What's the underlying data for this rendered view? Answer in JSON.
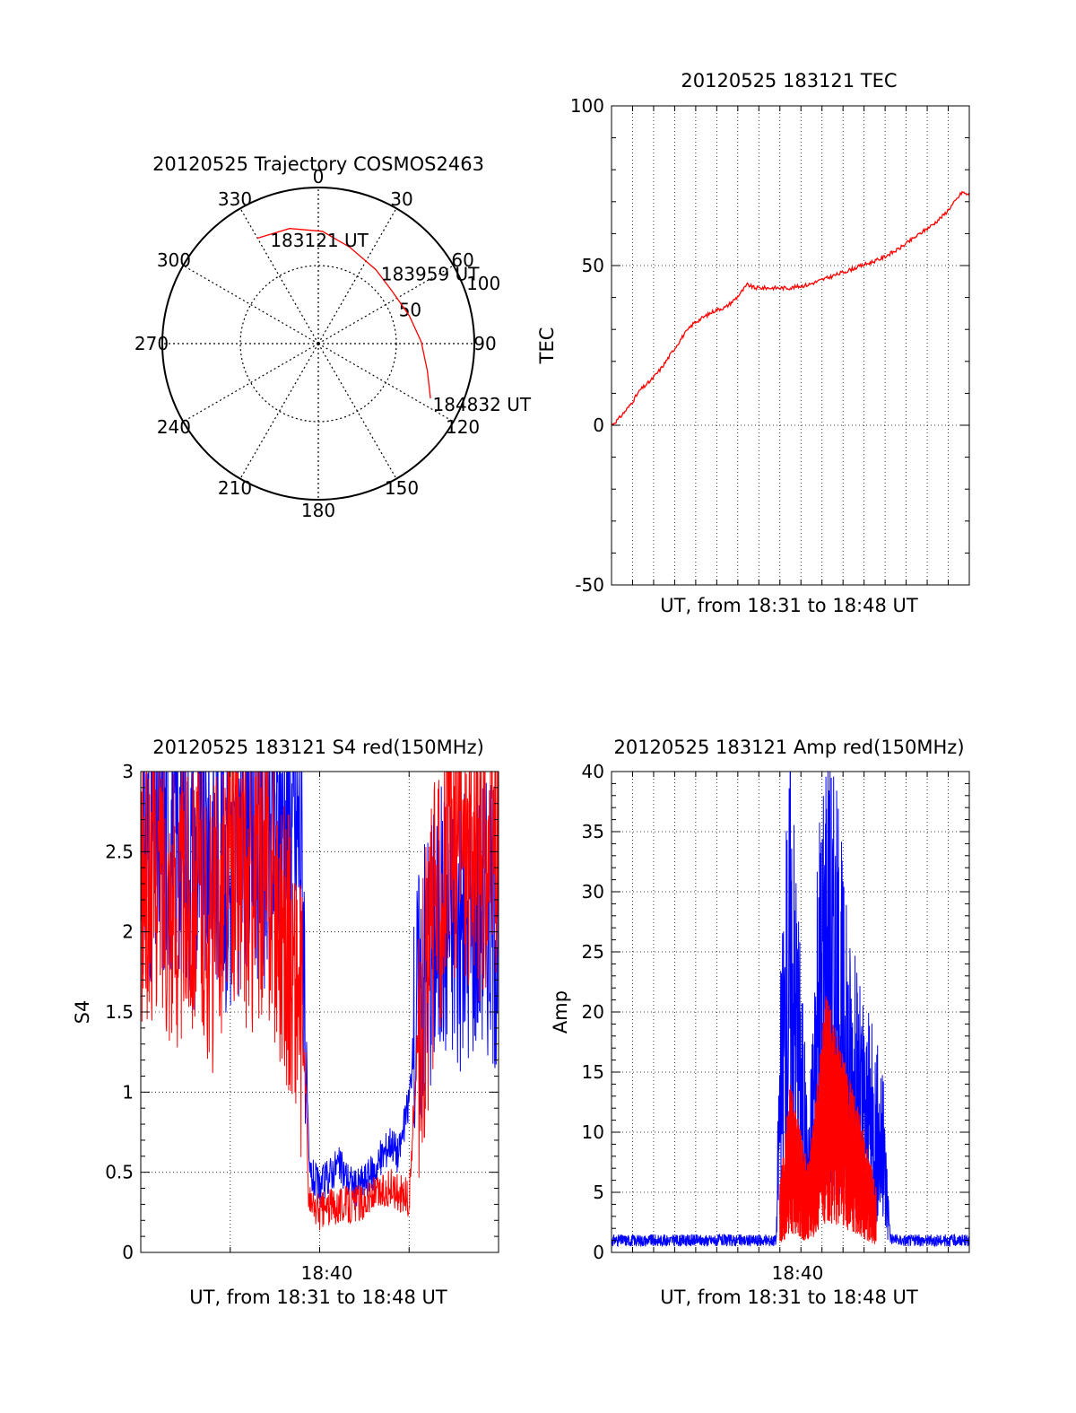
{
  "chart_data": [
    {
      "type": "polar-trajectory",
      "title": "20120525 Trajectory COSMOS2463",
      "angle_labels": [
        "0",
        "30",
        "60",
        "90",
        "120",
        "150",
        "180",
        "210",
        "240",
        "270",
        "300",
        "330"
      ],
      "radial_labels": [
        "50",
        "100"
      ],
      "radial_range": [
        0,
        100
      ],
      "grid": true,
      "series": [
        {
          "color": "#ff0000",
          "points": [
            {
              "az": 330,
              "el": 78
            },
            {
              "az": 346,
              "el": 76
            },
            {
              "az": 2,
              "el": 72
            },
            {
              "az": 18,
              "el": 65
            },
            {
              "az": 38,
              "el": 60
            },
            {
              "az": 55,
              "el": 58
            },
            {
              "az": 73,
              "el": 61
            },
            {
              "az": 89,
              "el": 66
            },
            {
              "az": 104,
              "el": 72
            },
            {
              "az": 116,
              "el": 80
            }
          ]
        }
      ],
      "annotations": [
        {
          "text": "183121 UT",
          "az": 335,
          "el": 73
        },
        {
          "text": "183959 UT",
          "az": 42,
          "el": 60
        },
        {
          "text": "184832 UT",
          "az": 118,
          "el": 83
        }
      ]
    },
    {
      "type": "line",
      "title": "20120525 183121 TEC",
      "xlabel": "UT, from 18:31 to 18:48 UT",
      "ylabel": "TEC",
      "xlim": [
        0,
        1
      ],
      "ylim": [
        -50,
        100
      ],
      "yticks": [
        "-50",
        "0",
        "50",
        "100"
      ],
      "grid": true,
      "series": [
        {
          "color": "#ff0000",
          "x": [
            0.0,
            0.02,
            0.05,
            0.08,
            0.11,
            0.14,
            0.17,
            0.2,
            0.23,
            0.26,
            0.29,
            0.32,
            0.35,
            0.38,
            0.4,
            0.45,
            0.5,
            0.55,
            0.6,
            0.65,
            0.7,
            0.75,
            0.8,
            0.85,
            0.9,
            0.93,
            0.96,
            0.98,
            1.0
          ],
          "y": [
            0,
            2,
            6,
            11,
            14,
            18,
            23,
            28,
            32,
            34,
            36,
            37,
            40,
            44,
            43,
            43,
            43,
            44,
            46,
            48,
            50,
            52,
            55,
            59,
            63,
            66,
            70,
            73,
            72
          ]
        }
      ]
    },
    {
      "type": "line",
      "title": "20120525 183121 S4 red(150MHz)",
      "xlabel": "UT, from 18:31 to 18:48 UT",
      "ylabel": "S4",
      "xlim": [
        0,
        1
      ],
      "ylim": [
        0,
        3
      ],
      "yticks": [
        "0",
        "0.5",
        "1",
        "1.5",
        "2",
        "2.5",
        "3"
      ],
      "xticks": [
        {
          "x": 0.52,
          "label": "18:40"
        }
      ],
      "grid": true,
      "series": [
        {
          "color": "#0000ff",
          "x": [
            0.0,
            0.05,
            0.1,
            0.15,
            0.2,
            0.25,
            0.3,
            0.35,
            0.4,
            0.45,
            0.47,
            0.5,
            0.55,
            0.6,
            0.65,
            0.7,
            0.72,
            0.75,
            0.77,
            0.8,
            0.85,
            0.9,
            0.95,
            1.0
          ],
          "y": [
            2.6,
            2.5,
            2.7,
            2.4,
            2.6,
            2.3,
            2.7,
            2.5,
            2.7,
            2.6,
            0.5,
            0.4,
            0.55,
            0.4,
            0.5,
            0.7,
            0.6,
            0.95,
            1.5,
            1.9,
            2.1,
            2.0,
            2.2,
            2.0
          ]
        },
        {
          "color": "#ff0000",
          "x": [
            0.0,
            0.05,
            0.1,
            0.15,
            0.2,
            0.25,
            0.3,
            0.35,
            0.4,
            0.44,
            0.46,
            0.47,
            0.5,
            0.55,
            0.6,
            0.65,
            0.7,
            0.74,
            0.75,
            0.77,
            0.8,
            0.85,
            0.9,
            0.95,
            1.0
          ],
          "y": [
            2.2,
            2.4,
            2.1,
            2.3,
            2.0,
            2.5,
            2.2,
            2.4,
            2.0,
            1.6,
            1.1,
            0.3,
            0.25,
            0.3,
            0.3,
            0.35,
            0.4,
            0.35,
            0.3,
            1.2,
            1.7,
            2.5,
            2.6,
            2.4,
            2.5
          ]
        }
      ]
    },
    {
      "type": "line",
      "title": "20120525 183121 Amp red(150MHz)",
      "xlabel": "UT, from 18:31 to 18:48 UT",
      "ylabel": "Amp",
      "xlim": [
        0,
        1
      ],
      "ylim": [
        0,
        40
      ],
      "yticks": [
        "0",
        "5",
        "10",
        "15",
        "20",
        "25",
        "30",
        "35",
        "40"
      ],
      "xticks": [
        {
          "x": 0.52,
          "label": "18:40"
        }
      ],
      "grid": true,
      "series": [
        {
          "color": "#0000ff",
          "x": [
            0.0,
            0.1,
            0.2,
            0.3,
            0.4,
            0.46,
            0.47,
            0.5,
            0.52,
            0.55,
            0.58,
            0.6,
            0.63,
            0.66,
            0.7,
            0.74,
            0.76,
            0.78,
            0.8,
            0.9,
            1.0
          ],
          "y": [
            1.0,
            1.0,
            1.0,
            1.0,
            1.0,
            1.0,
            12,
            25,
            18,
            6,
            20,
            26,
            22,
            16,
            12,
            10,
            8,
            1.2,
            1.0,
            1.0,
            1.0
          ]
        },
        {
          "color": "#ff0000",
          "x": [
            0.47,
            0.5,
            0.55,
            0.6,
            0.65,
            0.7,
            0.74
          ],
          "y": [
            3,
            8,
            4,
            12,
            9,
            6,
            3
          ]
        }
      ]
    }
  ]
}
